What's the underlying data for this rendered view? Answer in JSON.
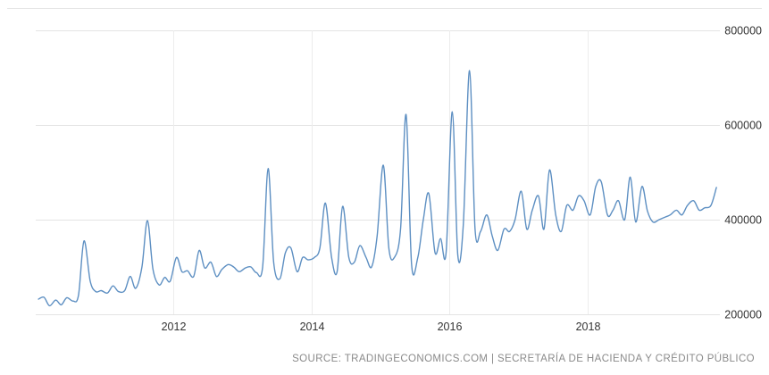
{
  "chart_data": {
    "type": "line",
    "title": "",
    "xlabel": "",
    "ylabel": "",
    "x_ticks": [
      "2012",
      "2014",
      "2016",
      "2018"
    ],
    "y_ticks": [
      "200000",
      "400000",
      "600000",
      "800000"
    ],
    "xlim": [
      2010.0,
      2019.92
    ],
    "ylim": [
      200000,
      800000
    ],
    "y_axis_position": "right",
    "grid": "horizontal",
    "legend": "none",
    "series_color": "#5d8fc2",
    "series": [
      {
        "x": [
          2010.04,
          2010.12,
          2010.2,
          2010.29,
          2010.37,
          2010.45,
          2010.54,
          2010.62,
          2010.7,
          2010.79,
          2010.87,
          2010.95,
          2011.04,
          2011.12,
          2011.2,
          2011.29,
          2011.37,
          2011.45,
          2011.54,
          2011.62,
          2011.7,
          2011.79,
          2011.87,
          2011.95,
          2012.04,
          2012.12,
          2012.2,
          2012.29,
          2012.37,
          2012.45,
          2012.54,
          2012.62,
          2012.7,
          2012.79,
          2012.87,
          2012.95,
          2013.04,
          2013.12,
          2013.2,
          2013.29,
          2013.37,
          2013.45,
          2013.54,
          2013.62,
          2013.7,
          2013.79,
          2013.87,
          2013.95,
          2014.04,
          2014.12,
          2014.2,
          2014.29,
          2014.37,
          2014.45,
          2014.54,
          2014.62,
          2014.7,
          2014.79,
          2014.87,
          2014.95,
          2015.04,
          2015.12,
          2015.2,
          2015.29,
          2015.37,
          2015.45,
          2015.54,
          2015.62,
          2015.7,
          2015.79,
          2015.87,
          2015.95,
          2016.04,
          2016.12,
          2016.2,
          2016.29,
          2016.37,
          2016.45,
          2016.54,
          2016.62,
          2016.7,
          2016.79,
          2016.87,
          2016.95,
          2017.04,
          2017.12,
          2017.2,
          2017.29,
          2017.37,
          2017.45,
          2017.54,
          2017.62,
          2017.7,
          2017.79,
          2017.87,
          2017.95,
          2018.04,
          2018.12,
          2018.2,
          2018.29,
          2018.37,
          2018.45,
          2018.54,
          2018.62,
          2018.7,
          2018.79,
          2018.87,
          2018.95,
          2019.04,
          2019.12,
          2019.2,
          2019.29,
          2019.37,
          2019.45,
          2019.54,
          2019.62,
          2019.7,
          2019.79,
          2019.87
        ],
        "y": [
          232000,
          236000,
          218000,
          230000,
          220000,
          235000,
          228000,
          240000,
          355000,
          270000,
          248000,
          250000,
          245000,
          260000,
          248000,
          250000,
          280000,
          255000,
          300000,
          398000,
          295000,
          262000,
          278000,
          270000,
          320000,
          290000,
          292000,
          280000,
          335000,
          298000,
          310000,
          280000,
          295000,
          305000,
          300000,
          290000,
          298000,
          300000,
          288000,
          300000,
          508000,
          310000,
          275000,
          330000,
          340000,
          290000,
          320000,
          315000,
          320000,
          340000,
          435000,
          320000,
          290000,
          428000,
          320000,
          310000,
          345000,
          320000,
          300000,
          365000,
          515000,
          340000,
          320000,
          380000,
          622000,
          305000,
          320000,
          400000,
          455000,
          330000,
          360000,
          330000,
          628000,
          325000,
          390000,
          715000,
          380000,
          375000,
          410000,
          365000,
          335000,
          380000,
          375000,
          400000,
          460000,
          380000,
          420000,
          450000,
          380000,
          505000,
          410000,
          375000,
          430000,
          420000,
          450000,
          440000,
          410000,
          470000,
          480000,
          410000,
          420000,
          440000,
          400000,
          490000,
          395000,
          470000,
          418000,
          395000,
          400000,
          405000,
          410000,
          420000,
          410000,
          430000,
          440000,
          420000,
          425000,
          430000,
          468000
        ]
      }
    ]
  },
  "source": "SOURCE: TRADINGECONOMICS.COM | SECRETARÍA DE HACIENDA Y CRÉDITO PÚBLICO"
}
